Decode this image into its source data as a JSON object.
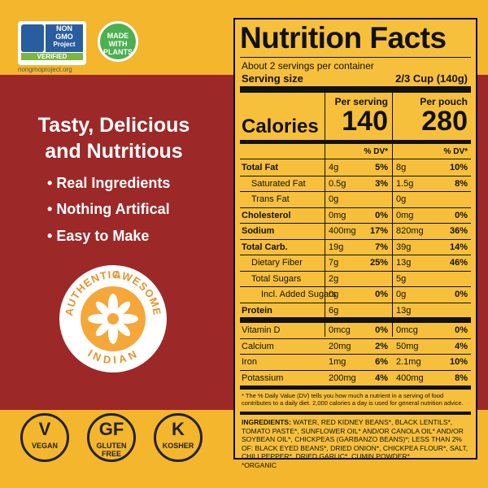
{
  "badges": {
    "nongmo": {
      "line1": "NON",
      "line2": "GMO",
      "line3": "Project",
      "verified": "VERIFIED",
      "url": "nongmoproject.org"
    },
    "plants": {
      "line1": "MADE",
      "line2": "WITH",
      "line3": "PLANTS"
    }
  },
  "headline": {
    "line1": "Tasty, Delicious",
    "line2": "and Nutritious"
  },
  "bullets": [
    "Real Ingredients",
    "Nothing Artifical",
    "Easy to Make"
  ],
  "seal": {
    "top_left": "AUTHENTIC",
    "top_right": "AWESOME",
    "bottom": "INDIAN"
  },
  "diet": [
    {
      "symbol": "V",
      "label": "VEGAN"
    },
    {
      "symbol": "GF",
      "label": "GLUTEN FREE"
    },
    {
      "symbol": "K",
      "label": "KOSHER"
    }
  ],
  "nutrition": {
    "title": "Nutrition Facts",
    "servings": "About 2 servings per container",
    "serving_size_label": "Serving size",
    "serving_size": "2/3 Cup (140g)",
    "columns": [
      "Per serving",
      "Per pouch"
    ],
    "calories_label": "Calories",
    "calories": [
      140,
      280
    ],
    "dv_header": "% DV*",
    "rows": [
      {
        "name": "Total Fat",
        "bold": true,
        "indent": 0,
        "values": [
          "4g",
          "5%",
          "8g",
          "10%"
        ]
      },
      {
        "name": "Saturated Fat",
        "bold": false,
        "indent": 1,
        "values": [
          "0.5g",
          "3%",
          "1.5g",
          "8%"
        ]
      },
      {
        "name": "Trans Fat",
        "bold": false,
        "indent": 1,
        "values": [
          "0g",
          null,
          "0g",
          null
        ]
      },
      {
        "name": "Cholesterol",
        "bold": true,
        "indent": 0,
        "values": [
          "0mg",
          "0%",
          "0mg",
          "0%"
        ]
      },
      {
        "name": "Sodium",
        "bold": true,
        "indent": 0,
        "values": [
          "400mg",
          "17%",
          "820mg",
          "36%"
        ]
      },
      {
        "name": "Total Carb.",
        "bold": true,
        "indent": 0,
        "values": [
          "19g",
          "7%",
          "39g",
          "14%"
        ]
      },
      {
        "name": "Dietary Fiber",
        "bold": false,
        "indent": 1,
        "values": [
          "7g",
          "25%",
          "13g",
          "46%"
        ]
      },
      {
        "name": "Total Sugars",
        "bold": false,
        "indent": 1,
        "values": [
          "2g",
          null,
          "5g",
          null
        ]
      },
      {
        "name": "Incl. Added Sugars",
        "bold": false,
        "indent": 2,
        "values": [
          "0g",
          "0%",
          "0g",
          "0%"
        ]
      },
      {
        "name": "Protein",
        "bold": true,
        "indent": 0,
        "values": [
          "6g",
          null,
          "13g",
          null
        ]
      }
    ],
    "vitamins": [
      {
        "name": "Vitamin D",
        "values": [
          "0mcg",
          "0%",
          "0mcg",
          "0%"
        ]
      },
      {
        "name": "Calcium",
        "values": [
          "20mg",
          "2%",
          "50mg",
          "4%"
        ]
      },
      {
        "name": "Iron",
        "values": [
          "1mg",
          "6%",
          "2.1mg",
          "10%"
        ]
      },
      {
        "name": "Potassium",
        "values": [
          "200mg",
          "4%",
          "400mg",
          "8%"
        ]
      }
    ],
    "footnote": "* The % Daily Value (DV) tells you how much a nutrient in a serving of food contributes to a daily diet. 2,000 calories a day is used for general nutrition advice.",
    "ingredients_label": "INGREDIENTS:",
    "ingredients": "WATER, RED KIDNEY BEANS*, BLACK LENTILS*, TOMATO PASTE*, SUNFLOWER OIL* AND/OR CANOLA OIL* AND/OR SOYBEAN OIL*, CHICKPEAS (GARBANZO BEANS)*; LESS THAN 2% OF: BLACK EYED BEANS*, DRIED ONION*, CHICKPEA FLOUR*, SALT, CHILI PEPPER*, DRIED GARLIC*, CUMIN POWDER*.",
    "organic_note": "*ORGANIC"
  }
}
